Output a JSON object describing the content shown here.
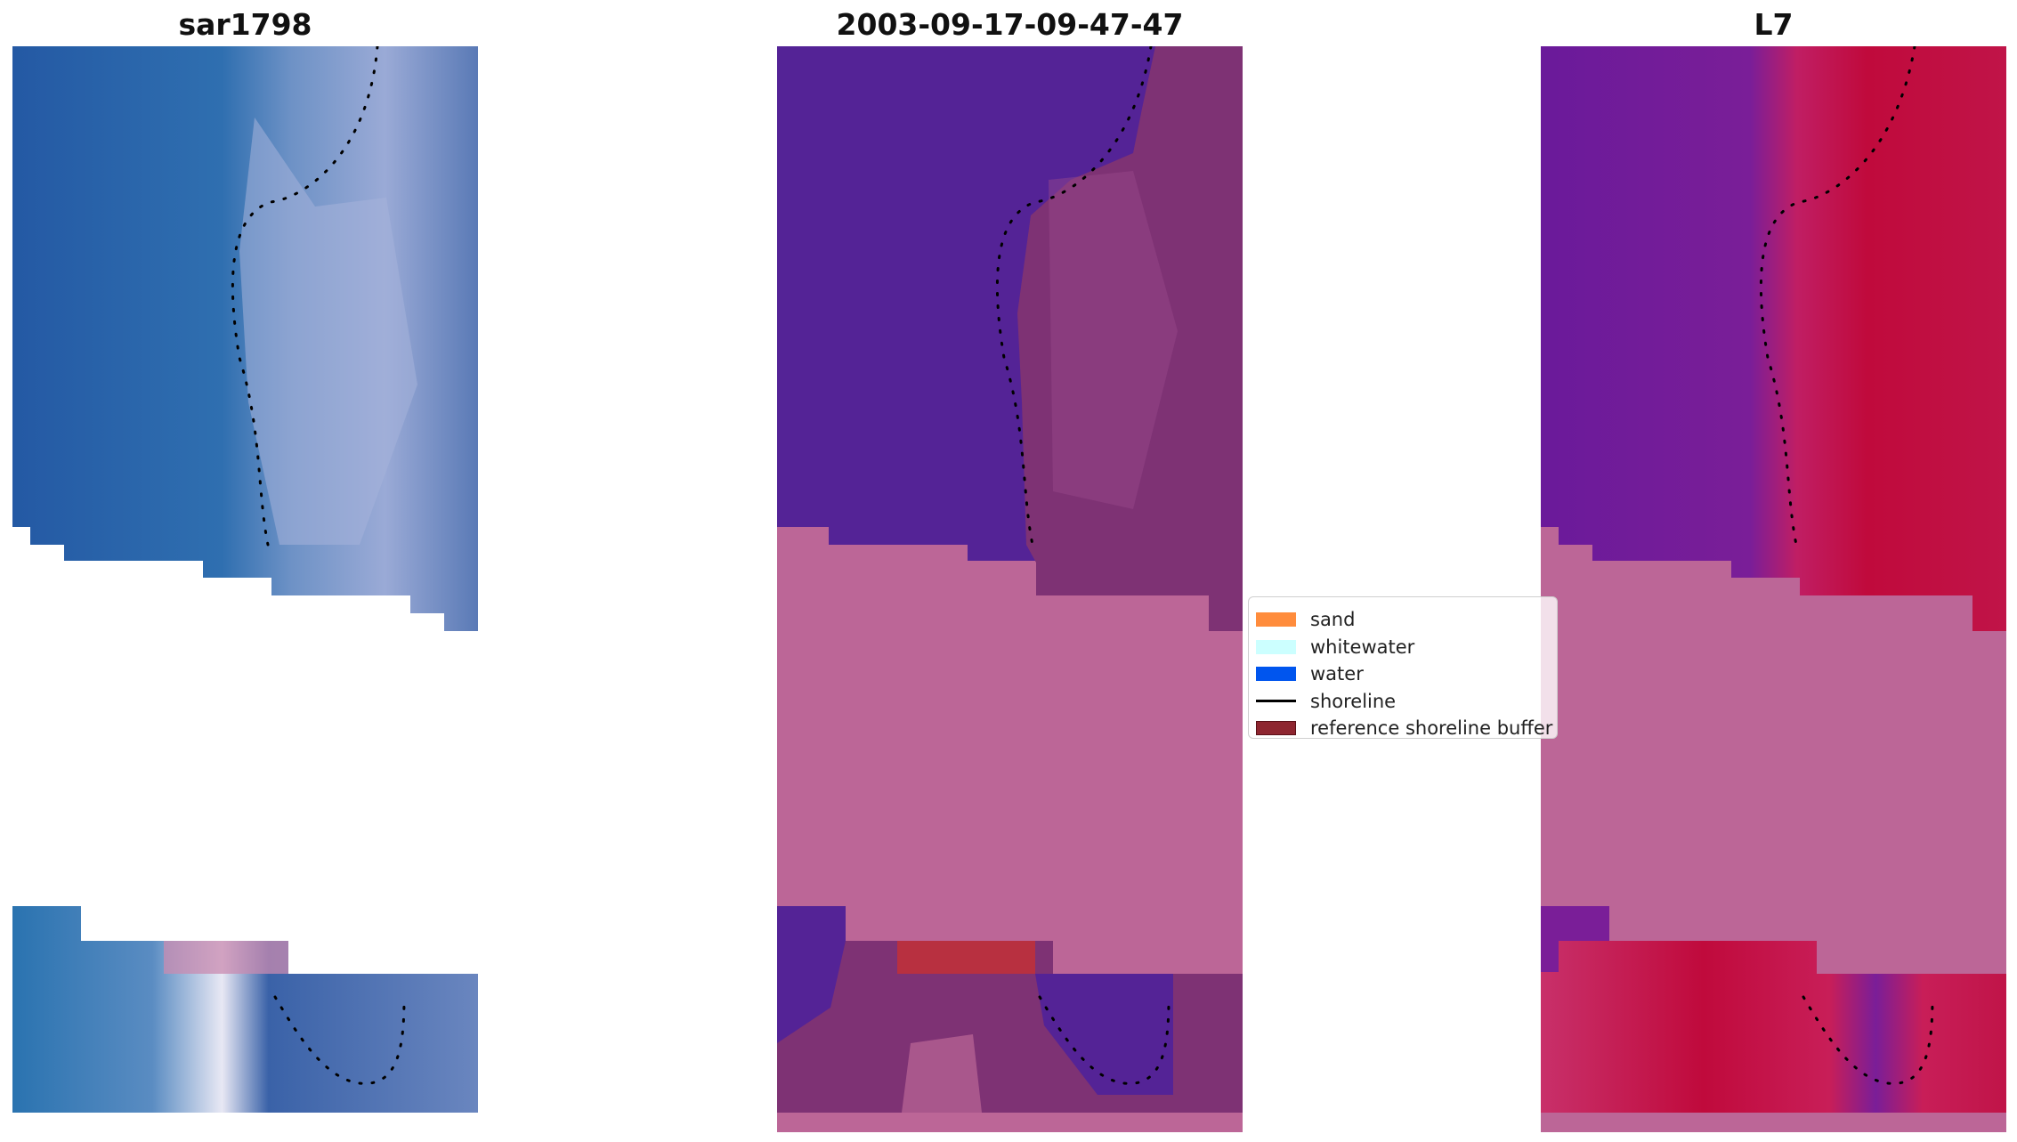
{
  "panels": [
    {
      "title": "sar1798"
    },
    {
      "title": "2003-09-17-09-47-47"
    },
    {
      "title": "L7"
    }
  ],
  "legend": {
    "items": [
      {
        "label": "sand",
        "color": "#ff8c3c",
        "kind": "patch"
      },
      {
        "label": "whitewater",
        "color": "#ccffff",
        "kind": "patch"
      },
      {
        "label": "water",
        "color": "#0055ee",
        "kind": "patch"
      },
      {
        "label": "shoreline",
        "color": "#000000",
        "kind": "line"
      },
      {
        "label": "reference shoreline buffer",
        "color": "#8e2630",
        "kind": "patch"
      }
    ]
  },
  "colors": {
    "rgb_water": "#2a5fa8",
    "rgb_sand": "#a8b4d8",
    "class_water": "#542396",
    "class_land": "#7e3274",
    "nodata_pink": "#bc6697",
    "buffer_red": "#b83040",
    "ndwi_negative": "#6a1a9a",
    "ndwi_positive": "#c00a3c"
  }
}
